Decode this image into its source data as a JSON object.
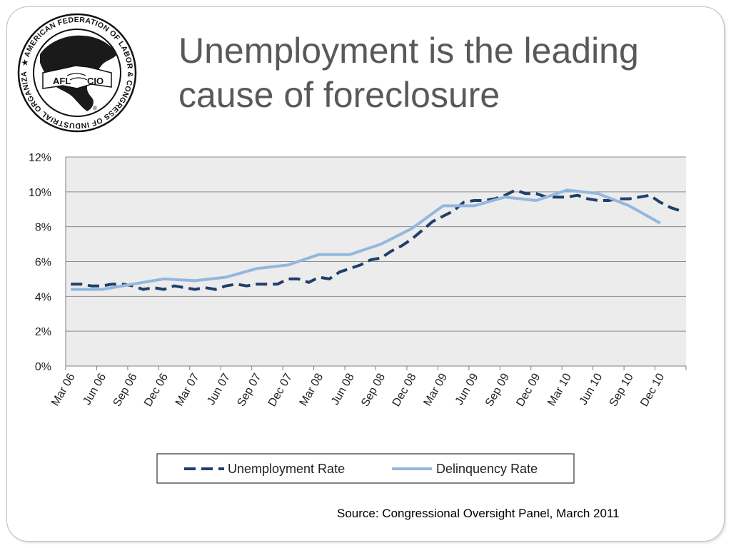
{
  "slide": {
    "title_line1": "Unemployment is the leading",
    "title_line2": "cause of foreclosure",
    "source": "Source: Congressional Oversight Panel, March 2011"
  },
  "logo": {
    "ring_text": "★ AMERICAN FEDERATION OF LABOR & CONGRESS OF INDUSTRIAL ORGANIZATIONS",
    "left_label": "AFL",
    "right_label": "CIO",
    "registered": "®"
  },
  "colors": {
    "unemployment": "#1f3f6b",
    "delinquency": "#93b7de",
    "plot_bg": "#ececec",
    "grid": "#8c8c8c"
  },
  "chart_data": {
    "type": "line",
    "x_ticks": [
      "Mar 06",
      "Jun 06",
      "Sep 06",
      "Dec 06",
      "Mar 07",
      "Jun 07",
      "Sep 07",
      "Dec 07",
      "Mar 08",
      "Jun 08",
      "Sep 08",
      "Dec 08",
      "Mar 09",
      "Jun 09",
      "Sep 09",
      "Dec 09",
      "Mar 10",
      "Jun 10",
      "Sep 10",
      "Dec 10"
    ],
    "x_months": [
      "Mar 06",
      "Apr 06",
      "May 06",
      "Jun 06",
      "Jul 06",
      "Aug 06",
      "Sep 06",
      "Oct 06",
      "Nov 06",
      "Dec 06",
      "Jan 07",
      "Feb 07",
      "Mar 07",
      "Apr 07",
      "May 07",
      "Jun 07",
      "Jul 07",
      "Aug 07",
      "Sep 07",
      "Oct 07",
      "Nov 07",
      "Dec 07",
      "Jan 08",
      "Feb 08",
      "Mar 08",
      "Apr 08",
      "May 08",
      "Jun 08",
      "Jul 08",
      "Aug 08",
      "Sep 08",
      "Oct 08",
      "Nov 08",
      "Dec 08",
      "Jan 09",
      "Feb 09",
      "Mar 09",
      "Apr 09",
      "May 09",
      "Jun 09",
      "Jul 09",
      "Aug 09",
      "Sep 09",
      "Oct 09",
      "Nov 09",
      "Dec 09",
      "Jan 10",
      "Feb 10",
      "Mar 10",
      "Apr 10",
      "May 10",
      "Jun 10",
      "Jul 10",
      "Aug 10",
      "Sep 10",
      "Oct 10",
      "Nov 10",
      "Dec 10",
      "Jan 11",
      "Feb 11"
    ],
    "y_ticks": [
      "0%",
      "2%",
      "4%",
      "6%",
      "8%",
      "10%",
      "12%"
    ],
    "ylim": [
      0,
      12
    ],
    "grid": true,
    "legend_position": "bottom",
    "series": [
      {
        "name": "Unemployment Rate",
        "style": "dashed",
        "values": [
          4.7,
          4.7,
          4.6,
          4.6,
          4.7,
          4.7,
          4.6,
          4.4,
          4.5,
          4.4,
          4.6,
          4.5,
          4.4,
          4.5,
          4.4,
          4.6,
          4.7,
          4.6,
          4.7,
          4.7,
          4.7,
          5.0,
          5.0,
          4.8,
          5.1,
          5.0,
          5.4,
          5.6,
          5.8,
          6.1,
          6.2,
          6.6,
          6.9,
          7.3,
          7.8,
          8.3,
          8.6,
          8.9,
          9.4,
          9.5,
          9.5,
          9.6,
          9.8,
          10.1,
          9.9,
          9.9,
          9.7,
          9.7,
          9.7,
          9.8,
          9.6,
          9.5,
          9.5,
          9.6,
          9.6,
          9.7,
          9.8,
          9.4,
          9.1,
          8.9
        ]
      },
      {
        "name": "Delinquency Rate",
        "style": "solid",
        "values": [
          4.4,
          null,
          null,
          4.4,
          null,
          null,
          4.7,
          null,
          null,
          5.0,
          null,
          null,
          4.9,
          null,
          null,
          5.1,
          null,
          null,
          5.6,
          null,
          null,
          5.8,
          null,
          null,
          6.4,
          null,
          null,
          6.4,
          null,
          null,
          7.0,
          null,
          null,
          7.9,
          null,
          null,
          9.2,
          null,
          null,
          9.2,
          null,
          null,
          9.7,
          null,
          null,
          9.5,
          null,
          null,
          10.1,
          null,
          null,
          9.9,
          null,
          null,
          9.2,
          null,
          null,
          8.2,
          null,
          null
        ]
      }
    ]
  }
}
